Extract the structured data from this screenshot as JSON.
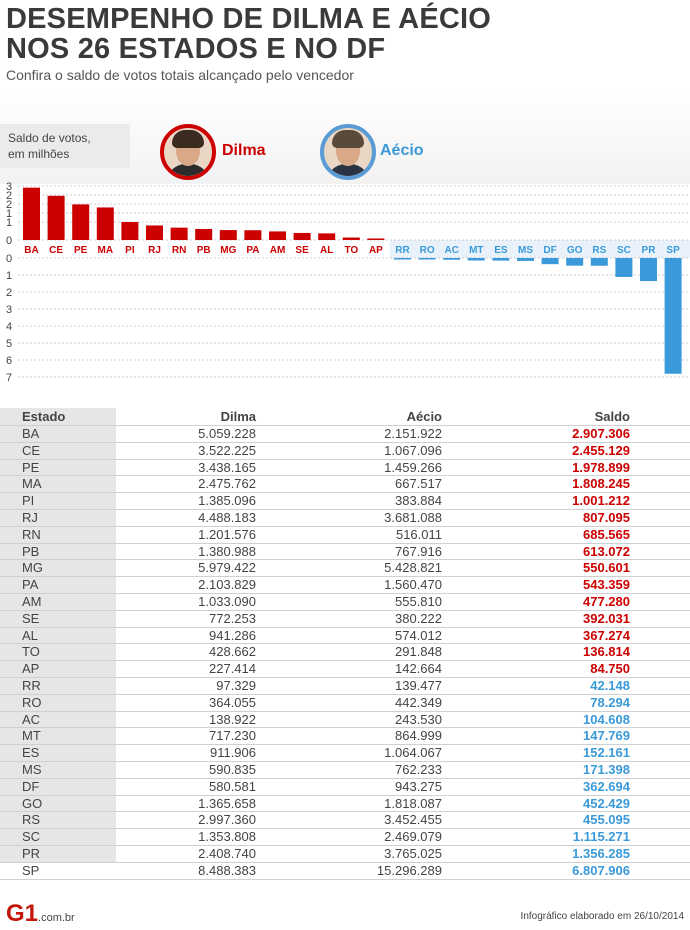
{
  "header": {
    "title_line1": "DESEMPENHO DE DILMA E AÉCIO",
    "title_line2": "NOS 26 ESTADOS E NO DF",
    "subtitle": "Confira o saldo de votos totais alcançado pelo vencedor"
  },
  "legend": {
    "unit_line1": "Saldo de votos,",
    "unit_line2": "em milhões",
    "dilma": "Dilma",
    "aecio": "Aécio"
  },
  "colors": {
    "dilma": "#cc0000",
    "aecio": "#3a9ad9",
    "dilma_avatar_border": "#cc0000",
    "aecio_avatar_border": "#5b9bd5"
  },
  "chart_data": {
    "type": "bar",
    "title": "DESEMPENHO DE DILMA E AÉCIO NOS 26 ESTADOS E NO DF",
    "ylabel": "Saldo de votos, em milhões",
    "dilma_axis": {
      "ylim": [
        0,
        3
      ],
      "ticks": [
        "3",
        "2",
        "2",
        "1",
        "1",
        "0"
      ]
    },
    "aecio_axis": {
      "ylim": [
        0,
        7
      ],
      "ticks": [
        "0",
        "1",
        "2",
        "3",
        "4",
        "5",
        "6",
        "7"
      ]
    },
    "series": [
      {
        "name": "Dilma",
        "categories": [
          "BA",
          "CE",
          "PE",
          "MA",
          "PI",
          "RJ",
          "RN",
          "PB",
          "MG",
          "PA",
          "AM",
          "SE",
          "AL",
          "TO",
          "AP"
        ],
        "values": [
          2.907,
          2.455,
          1.979,
          1.808,
          1.001,
          0.807,
          0.686,
          0.613,
          0.551,
          0.543,
          0.477,
          0.392,
          0.367,
          0.137,
          0.085
        ]
      },
      {
        "name": "Aécio",
        "categories": [
          "RR",
          "RO",
          "AC",
          "MT",
          "ES",
          "MS",
          "DF",
          "GO",
          "RS",
          "SC",
          "PR",
          "SP"
        ],
        "values": [
          0.042,
          0.078,
          0.105,
          0.148,
          0.152,
          0.171,
          0.363,
          0.452,
          0.455,
          1.115,
          1.356,
          6.808
        ]
      }
    ]
  },
  "table": {
    "headers": [
      "Estado",
      "Dilma",
      "Aécio",
      "Saldo"
    ],
    "rows": [
      {
        "estado": "BA",
        "dilma": "5.059.228",
        "aecio": "2.151.922",
        "saldo": "2.907.306",
        "winner": "dilma"
      },
      {
        "estado": "CE",
        "dilma": "3.522.225",
        "aecio": "1.067.096",
        "saldo": "2.455.129",
        "winner": "dilma"
      },
      {
        "estado": "PE",
        "dilma": "3.438.165",
        "aecio": "1.459.266",
        "saldo": "1.978.899",
        "winner": "dilma"
      },
      {
        "estado": "MA",
        "dilma": "2.475.762",
        "aecio": "667.517",
        "saldo": "1.808.245",
        "winner": "dilma"
      },
      {
        "estado": "PI",
        "dilma": "1.385.096",
        "aecio": "383.884",
        "saldo": "1.001.212",
        "winner": "dilma"
      },
      {
        "estado": "RJ",
        "dilma": "4.488.183",
        "aecio": "3.681.088",
        "saldo": "807.095",
        "winner": "dilma"
      },
      {
        "estado": "RN",
        "dilma": "1.201.576",
        "aecio": "516.011",
        "saldo": "685.565",
        "winner": "dilma"
      },
      {
        "estado": "PB",
        "dilma": "1.380.988",
        "aecio": "767.916",
        "saldo": "613.072",
        "winner": "dilma"
      },
      {
        "estado": "MG",
        "dilma": "5.979.422",
        "aecio": "5.428.821",
        "saldo": "550.601",
        "winner": "dilma"
      },
      {
        "estado": "PA",
        "dilma": "2.103.829",
        "aecio": "1.560.470",
        "saldo": "543.359",
        "winner": "dilma"
      },
      {
        "estado": "AM",
        "dilma": "1.033.090",
        "aecio": "555.810",
        "saldo": "477.280",
        "winner": "dilma"
      },
      {
        "estado": "SE",
        "dilma": "772.253",
        "aecio": "380.222",
        "saldo": "392.031",
        "winner": "dilma"
      },
      {
        "estado": "AL",
        "dilma": "941.286",
        "aecio": "574.012",
        "saldo": "367.274",
        "winner": "dilma"
      },
      {
        "estado": "TO",
        "dilma": "428.662",
        "aecio": "291.848",
        "saldo": "136.814",
        "winner": "dilma"
      },
      {
        "estado": "AP",
        "dilma": "227.414",
        "aecio": "142.664",
        "saldo": "84.750",
        "winner": "dilma"
      },
      {
        "estado": "RR",
        "dilma": "97.329",
        "aecio": "139.477",
        "saldo": "42.148",
        "winner": "aecio"
      },
      {
        "estado": "RO",
        "dilma": "364.055",
        "aecio": "442.349",
        "saldo": "78.294",
        "winner": "aecio"
      },
      {
        "estado": "AC",
        "dilma": "138.922",
        "aecio": "243.530",
        "saldo": "104.608",
        "winner": "aecio"
      },
      {
        "estado": "MT",
        "dilma": "717.230",
        "aecio": "864.999",
        "saldo": "147.769",
        "winner": "aecio"
      },
      {
        "estado": "ES",
        "dilma": "911.906",
        "aecio": "1.064.067",
        "saldo": "152.161",
        "winner": "aecio"
      },
      {
        "estado": "MS",
        "dilma": "590.835",
        "aecio": "762.233",
        "saldo": "171.398",
        "winner": "aecio"
      },
      {
        "estado": "DF",
        "dilma": "580.581",
        "aecio": "943.275",
        "saldo": "362.694",
        "winner": "aecio"
      },
      {
        "estado": "GO",
        "dilma": "1.365.658",
        "aecio": "1.818.087",
        "saldo": "452.429",
        "winner": "aecio"
      },
      {
        "estado": "RS",
        "dilma": "2.997.360",
        "aecio": "3.452.455",
        "saldo": "455.095",
        "winner": "aecio"
      },
      {
        "estado": "SC",
        "dilma": "1.353.808",
        "aecio": "2.469.079",
        "saldo": "1.115.271",
        "winner": "aecio"
      },
      {
        "estado": "PR",
        "dilma": "2.408.740",
        "aecio": "3.765.025",
        "saldo": "1.356.285",
        "winner": "aecio"
      },
      {
        "estado": "SP",
        "dilma": "8.488.383",
        "aecio": "15.296.289",
        "saldo": "6.807.906",
        "winner": "aecio"
      }
    ]
  },
  "footer": {
    "logo": "G1",
    "domain": ".com.br",
    "credit": "Infográfico elaborado em 26/10/2014"
  }
}
